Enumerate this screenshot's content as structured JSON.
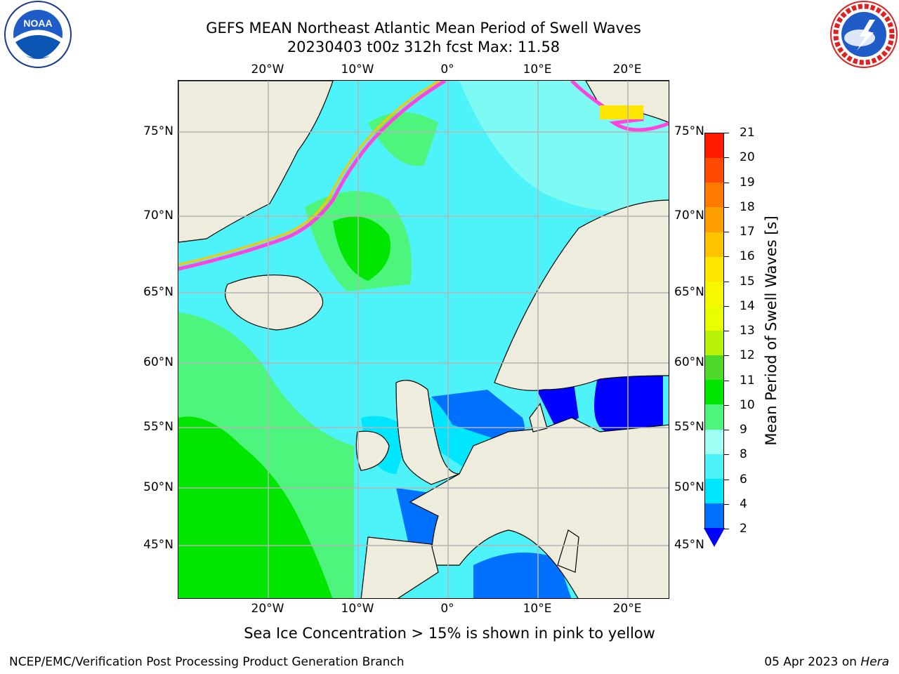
{
  "title_line1": "GEFS MEAN Northeast Atlantic Mean Period of Swell Waves",
  "title_line2": "20230403 t00z 312h fcst   Max: 11.58",
  "x_axis_labels": [
    "20°W",
    "10°W",
    "0°",
    "10°E",
    "20°E"
  ],
  "y_axis_labels": [
    "75°N",
    "70°N",
    "65°N",
    "60°N",
    "55°N",
    "50°N",
    "45°N"
  ],
  "colorbar": {
    "label": "Mean Period of Swell Waves [s]",
    "ticks": [
      "2",
      "4",
      "6",
      "8",
      "9",
      "10",
      "11",
      "12",
      "13",
      "14",
      "15",
      "16",
      "17",
      "18",
      "19",
      "20",
      "21"
    ],
    "colors": [
      "#0070ff",
      "#00e6ff",
      "#4df3f8",
      "#9ffff2",
      "#4ef57c",
      "#00e600",
      "#4fd92b",
      "#b7f208",
      "#e9ff00",
      "#f7f700",
      "#ffe600",
      "#ffc400",
      "#ff9e00",
      "#ff7a00",
      "#ff4a00",
      "#ff1a00"
    ],
    "extend_color": "#0000ff"
  },
  "colors": {
    "land": "#eeecdc",
    "ice": "#ff44dd",
    "gridline": "#b4b4b4"
  },
  "sea_ice_note": "Sea Ice Concentration > 15% is shown in pink to yellow",
  "footer_left": "NCEP/EMC/Verification Post Processing Product Generation Branch",
  "footer_date": "05 Apr 2023 on",
  "footer_machine": "Hera",
  "logos": {
    "noaa": "NOAA",
    "noaa_ring": "NATIONAL OCEANIC AND ATMOSPHERIC ADMINISTRATION · U.S. DEPARTMENT OF COMMERCE",
    "nws_ring": "NATIONAL WEATHER SERVICE"
  }
}
